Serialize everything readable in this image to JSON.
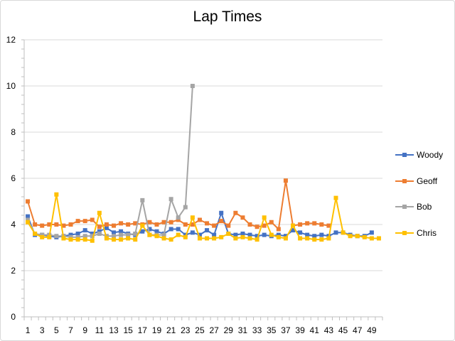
{
  "chart_data": {
    "type": "line",
    "title": "Lap Times",
    "xlabel": "",
    "ylabel": "",
    "ylim": [
      0,
      12
    ],
    "yticks": [
      "0",
      "2",
      "4",
      "6",
      "8",
      "10",
      "12"
    ],
    "x": [
      1,
      2,
      3,
      4,
      5,
      6,
      7,
      8,
      9,
      10,
      11,
      12,
      13,
      14,
      15,
      16,
      17,
      18,
      19,
      20,
      21,
      22,
      23,
      24,
      25,
      26,
      27,
      28,
      29,
      30,
      31,
      32,
      33,
      34,
      35,
      36,
      37,
      38,
      39,
      40,
      41,
      42,
      43,
      44,
      45,
      46,
      47,
      48,
      49,
      50
    ],
    "xtick_labels": [
      "1",
      "3",
      "5",
      "7",
      "9",
      "11",
      "13",
      "15",
      "17",
      "19",
      "21",
      "23",
      "25",
      "27",
      "29",
      "31",
      "33",
      "35",
      "37",
      "39",
      "41",
      "43",
      "45",
      "47",
      "49"
    ],
    "grid": "horizontal",
    "legend_position": "right",
    "series": [
      {
        "name": "Woody",
        "color": "#4472c4",
        "values": [
          4.35,
          3.55,
          3.55,
          3.5,
          3.45,
          3.5,
          3.55,
          3.6,
          3.75,
          3.6,
          3.7,
          3.85,
          3.65,
          3.7,
          3.6,
          3.55,
          3.7,
          3.8,
          3.7,
          3.6,
          3.8,
          3.8,
          3.55,
          3.65,
          3.55,
          3.75,
          3.55,
          4.5,
          3.6,
          3.55,
          3.6,
          3.55,
          3.5,
          3.55,
          3.5,
          3.55,
          3.5,
          3.75,
          3.65,
          3.55,
          3.5,
          3.55,
          3.5,
          3.65,
          3.65,
          3.55,
          3.5,
          3.5,
          3.65,
          null
        ]
      },
      {
        "name": "Geoff",
        "color": "#ed7d31",
        "values": [
          5.0,
          4.0,
          3.95,
          4.0,
          4.0,
          3.95,
          4.0,
          4.15,
          4.15,
          4.2,
          3.9,
          4.0,
          3.95,
          4.05,
          4.0,
          4.05,
          4.0,
          4.1,
          4.0,
          4.1,
          4.1,
          4.2,
          4.0,
          4.0,
          4.2,
          4.05,
          3.95,
          4.15,
          3.95,
          4.5,
          4.3,
          4.0,
          3.9,
          3.95,
          4.1,
          3.8,
          5.9,
          3.95,
          4.0,
          4.05,
          4.05,
          4.0,
          3.95,
          null,
          null,
          null,
          null,
          null,
          null,
          null
        ]
      },
      {
        "name": "Bob",
        "color": "#a5a5a5",
        "values": [
          4.2,
          3.6,
          3.55,
          3.55,
          3.5,
          3.5,
          3.45,
          3.45,
          3.5,
          3.5,
          3.6,
          3.5,
          3.5,
          3.55,
          3.55,
          3.6,
          5.05,
          3.55,
          3.55,
          3.55,
          5.1,
          4.3,
          4.75,
          10.0,
          null,
          null,
          null,
          null,
          null,
          null,
          null,
          null,
          null,
          null,
          null,
          null,
          null,
          null,
          null,
          null,
          null,
          null,
          null,
          null,
          null,
          null,
          null,
          null,
          null,
          null
        ]
      },
      {
        "name": "Chris",
        "color": "#ffc000",
        "values": [
          4.1,
          3.6,
          3.45,
          3.45,
          5.3,
          3.4,
          3.35,
          3.35,
          3.35,
          3.3,
          4.5,
          3.4,
          3.35,
          3.35,
          3.4,
          3.35,
          3.95,
          3.55,
          3.5,
          3.4,
          3.35,
          3.55,
          3.45,
          4.3,
          3.4,
          3.4,
          3.4,
          3.45,
          3.6,
          3.4,
          3.45,
          3.4,
          3.35,
          4.3,
          3.55,
          3.45,
          3.4,
          3.95,
          3.4,
          3.4,
          3.35,
          3.35,
          3.4,
          5.15,
          3.65,
          3.5,
          3.5,
          3.45,
          3.4,
          3.4
        ]
      }
    ]
  }
}
